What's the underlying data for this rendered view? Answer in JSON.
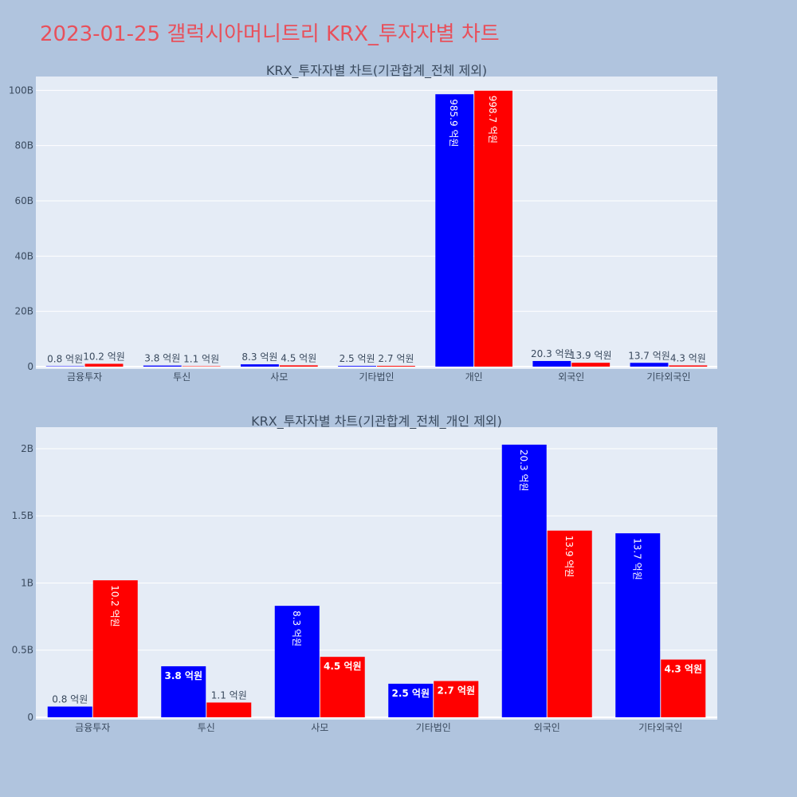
{
  "page": {
    "title": "2023-01-25 갤럭시아머니트리 KRX_투자자별 차트"
  },
  "colors": {
    "buy": "#0000ff",
    "sell": "#ff0000",
    "plot_bg": "#e5ecf6",
    "page_bg": "#b0c4de",
    "title": "#e8505b"
  },
  "chart_data": [
    {
      "type": "bar",
      "title": "KRX_투자자별 차트(기관합계_전체 제외)",
      "categories": [
        "금융투자",
        "투신",
        "사모",
        "기타법인",
        "개인",
        "외국인",
        "기타외국인"
      ],
      "series": [
        {
          "values": [
            0.08,
            0.38,
            0.83,
            0.25,
            98.59,
            2.03,
            1.37
          ],
          "labels": [
            "0.8 억원",
            "3.8 억원",
            "8.3 억원",
            "2.5 억원",
            "985.9 억원",
            "20.3 억원",
            "13.7 억원"
          ]
        },
        {
          "values": [
            1.02,
            0.11,
            0.45,
            0.27,
            99.87,
            1.39,
            0.43
          ],
          "labels": [
            "10.2 억원",
            "1.1 억원",
            "4.5 억원",
            "2.7 억원",
            "998.7 억원",
            "13.9 억원",
            "4.3 억원"
          ]
        }
      ],
      "ylim": [
        0,
        105
      ],
      "yticks": [
        0,
        20,
        40,
        60,
        80,
        100
      ],
      "ytick_labels": [
        "0",
        "20B",
        "40B",
        "60B",
        "80B",
        "100B"
      ],
      "grid": true,
      "barmode": "group"
    },
    {
      "type": "bar",
      "title": "KRX_투자자별 차트(기관합계_전체_개인 제외)",
      "categories": [
        "금융투자",
        "투신",
        "사모",
        "기타법인",
        "외국인",
        "기타외국인"
      ],
      "series": [
        {
          "values": [
            0.08,
            0.38,
            0.83,
            0.25,
            2.03,
            1.37
          ],
          "labels": [
            "0.8 억원",
            "3.8 억원",
            "8.3 억원",
            "2.5 억원",
            "20.3 억원",
            "13.7 억원"
          ]
        },
        {
          "values": [
            1.02,
            0.11,
            0.45,
            0.27,
            1.39,
            0.43
          ],
          "labels": [
            "10.2 억원",
            "1.1 억원",
            "4.5 억원",
            "2.7 억원",
            "13.9 억원",
            "4.3 억원"
          ]
        }
      ],
      "ylim": [
        0,
        2.16
      ],
      "yticks": [
        0,
        0.5,
        1,
        1.5,
        2
      ],
      "ytick_labels": [
        "0",
        "0.5B",
        "1B",
        "1.5B",
        "2B"
      ],
      "grid": true,
      "barmode": "group"
    }
  ]
}
